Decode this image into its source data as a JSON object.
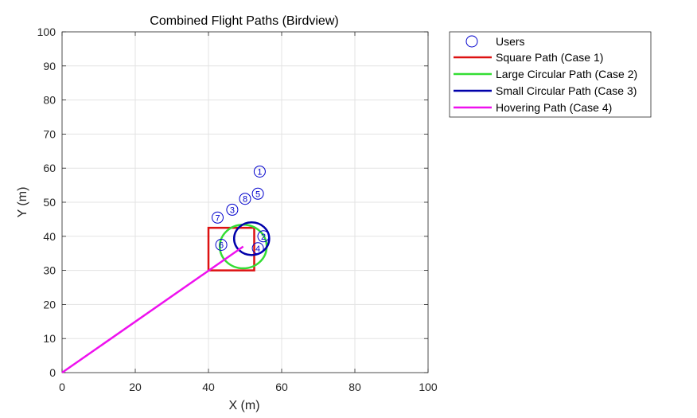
{
  "chart_data": {
    "type": "line",
    "title": "Combined Flight Paths (Birdview)",
    "xlabel": "X (m)",
    "ylabel": "Y (m)",
    "xlim": [
      0,
      100
    ],
    "ylim": [
      0,
      100
    ],
    "xticks": [
      "0",
      "20",
      "40",
      "60",
      "80",
      "100"
    ],
    "yticks": [
      "0",
      "10",
      "20",
      "30",
      "40",
      "50",
      "60",
      "70",
      "80",
      "90",
      "100"
    ],
    "grid": true,
    "legend_position": "outside-top-right",
    "users": {
      "name": "Users",
      "color": "#0000cc",
      "points": [
        {
          "label": "1",
          "x": 54.0,
          "y": 59.0
        },
        {
          "label": "2",
          "x": 55.0,
          "y": 40.0
        },
        {
          "label": "3",
          "x": 46.5,
          "y": 47.8
        },
        {
          "label": "4",
          "x": 53.5,
          "y": 36.5
        },
        {
          "label": "5",
          "x": 53.5,
          "y": 52.5
        },
        {
          "label": "6",
          "x": 43.5,
          "y": 37.5
        },
        {
          "label": "7",
          "x": 42.5,
          "y": 45.5
        },
        {
          "label": "8",
          "x": 50.0,
          "y": 51.0
        }
      ]
    },
    "series": [
      {
        "name": "Square Path (Case 1)",
        "color": "#dd1111",
        "kind": "polyline",
        "points": [
          [
            40,
            30
          ],
          [
            52.5,
            30
          ],
          [
            52.5,
            42.5
          ],
          [
            40,
            42.5
          ],
          [
            40,
            30
          ]
        ]
      },
      {
        "name": "Large Circular Path (Case 2)",
        "color": "#33dd33",
        "kind": "circle",
        "center": [
          49.5,
          37.0
        ],
        "radius": 6.4
      },
      {
        "name": "Small Circular Path (Case 3)",
        "color": "#0000aa",
        "kind": "circle",
        "center": [
          51.8,
          39.3
        ],
        "radius": 4.8
      },
      {
        "name": "Hovering Path (Case 4)",
        "color": "#ee11ee",
        "kind": "polyline",
        "points": [
          [
            0,
            0
          ],
          [
            49.5,
            37.0
          ]
        ]
      }
    ]
  }
}
